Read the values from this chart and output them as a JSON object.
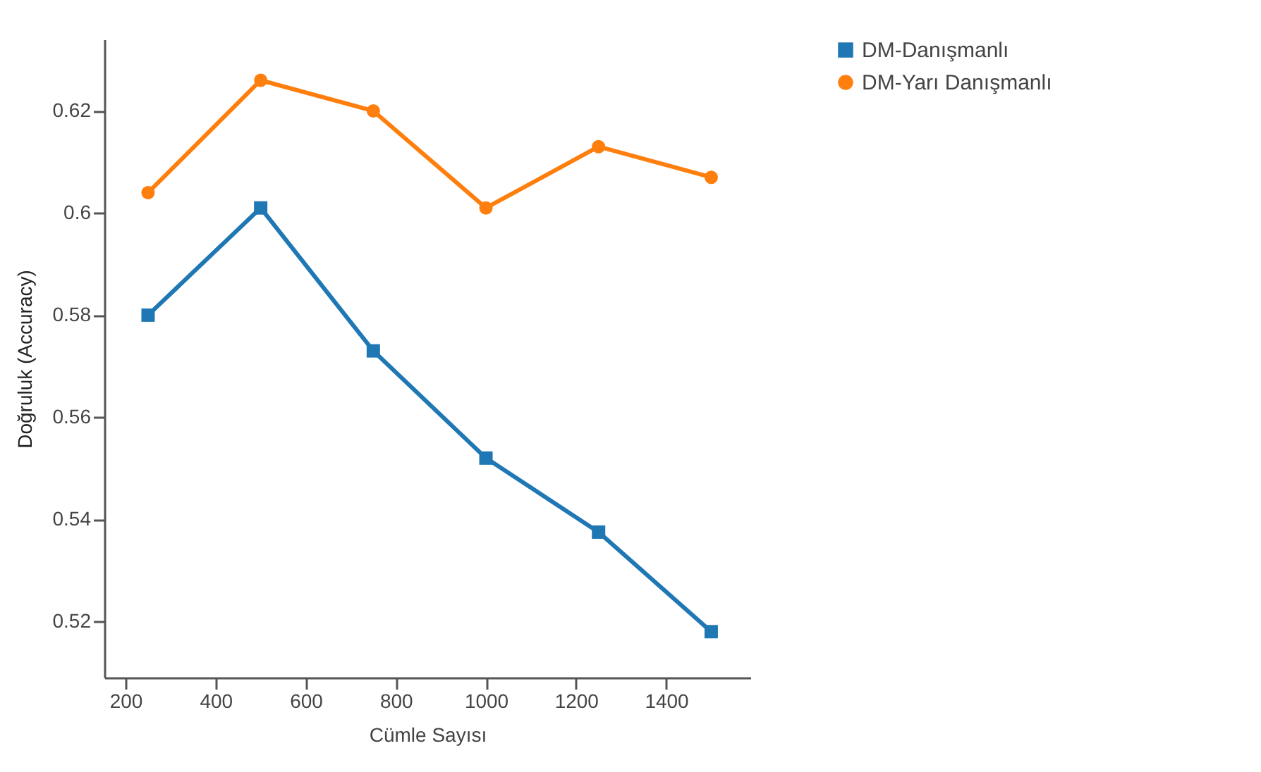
{
  "chart_data": {
    "type": "line",
    "xlabel": "Cümle Sayısı",
    "ylabel": "Doğruluk (Accuracy)",
    "x": [
      250,
      500,
      750,
      1000,
      1250,
      1500
    ],
    "series": [
      {
        "name": "DM-Danışmanlı",
        "color": "#1f77b4",
        "marker": "square",
        "values": [
          0.58,
          0.601,
          0.573,
          0.552,
          0.5375,
          0.518
        ]
      },
      {
        "name": "DM-Yarı Danışmanlı",
        "color": "#ff7f0e",
        "marker": "circle",
        "values": [
          0.604,
          0.626,
          0.62,
          0.601,
          0.613,
          0.607
        ]
      }
    ],
    "xlim": [
      153,
      1587
    ],
    "xticks": [
      200,
      400,
      600,
      800,
      1000,
      1200,
      1400
    ],
    "ylim": [
      0.509,
      0.634
    ],
    "yticks": [
      0.52,
      0.54,
      0.56,
      0.58,
      {
        "value": 0.6,
        "label": "0.6"
      },
      0.62
    ],
    "grid": false,
    "legend": "top right",
    "line_style": "solid"
  }
}
